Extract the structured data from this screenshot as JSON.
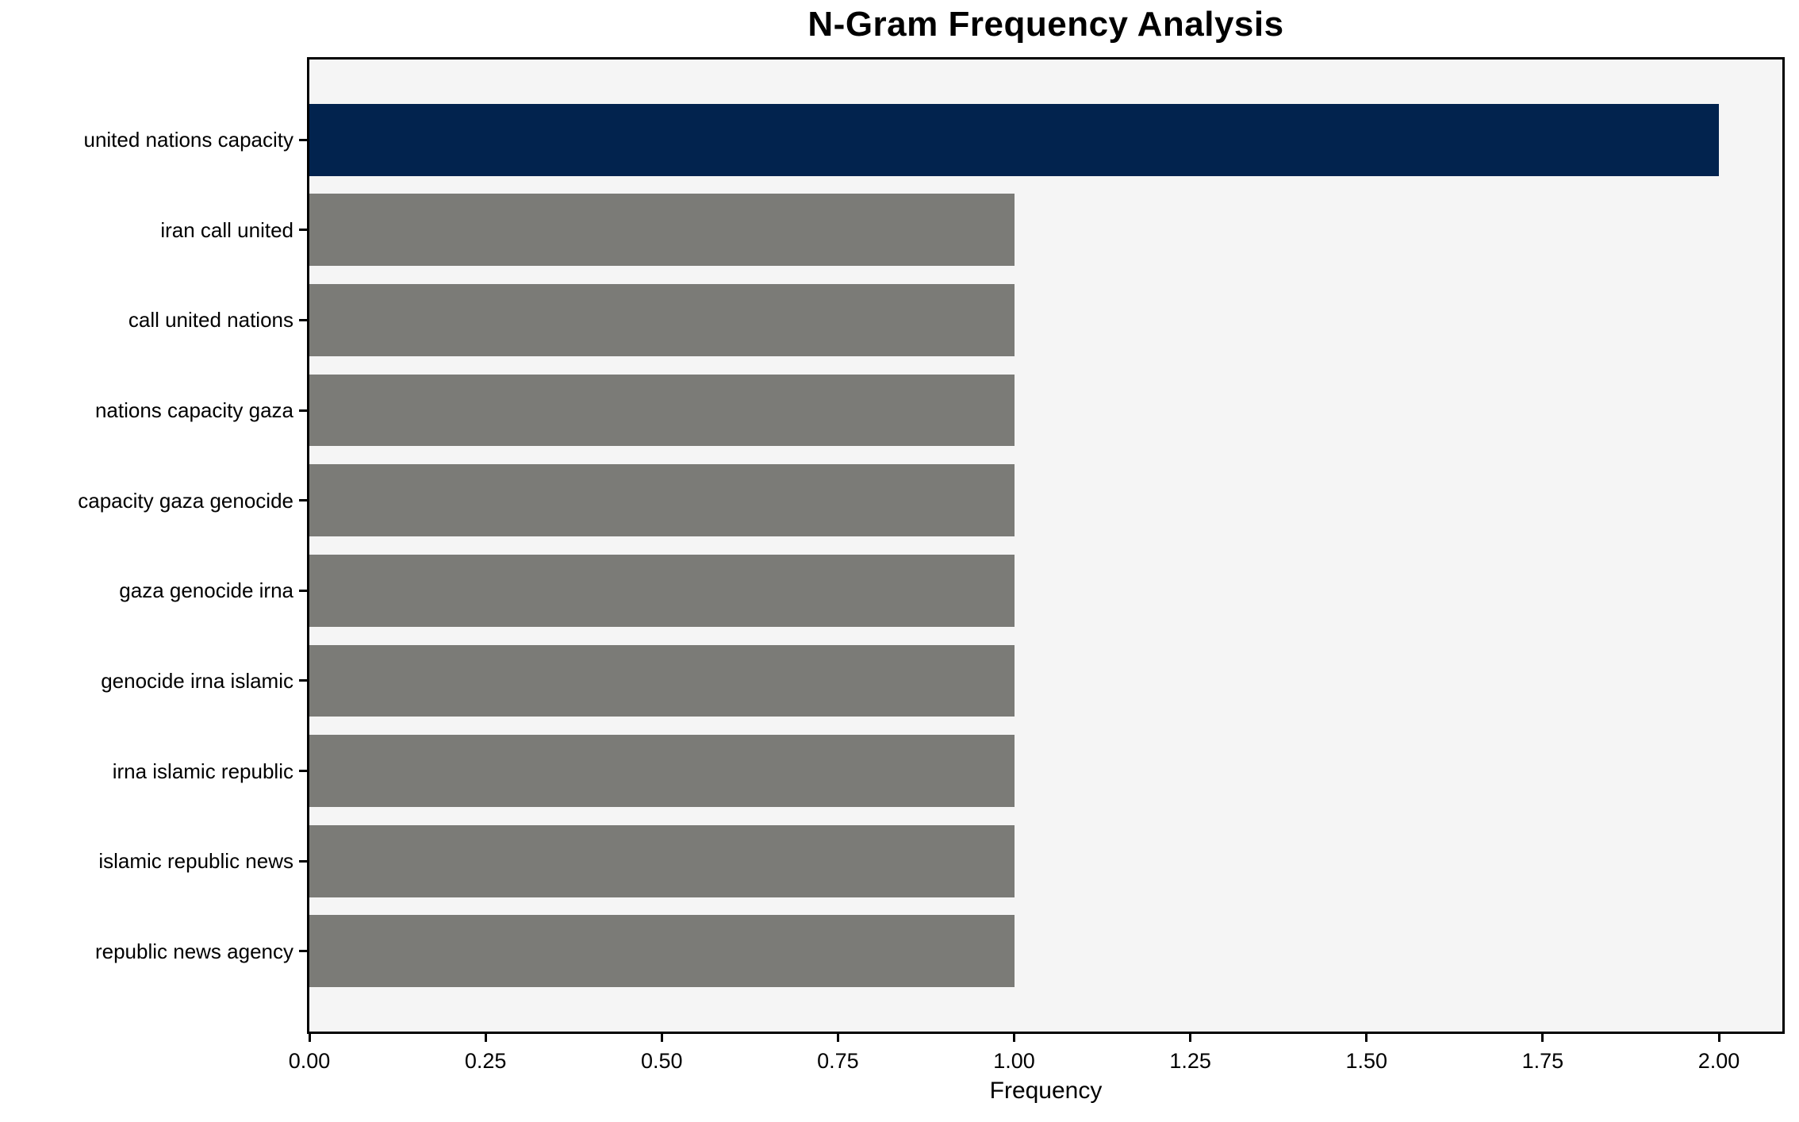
{
  "chart_data": {
    "type": "bar",
    "orientation": "horizontal",
    "title": "N-Gram Frequency Analysis",
    "xlabel": "Frequency",
    "ylabel": "",
    "categories": [
      "united nations capacity",
      "iran call united",
      "call united nations",
      "nations capacity gaza",
      "capacity gaza genocide",
      "gaza genocide irna",
      "genocide irna islamic",
      "irna islamic republic",
      "islamic republic news",
      "republic news agency"
    ],
    "values": [
      2.0,
      1.0,
      1.0,
      1.0,
      1.0,
      1.0,
      1.0,
      1.0,
      1.0,
      1.0
    ],
    "bar_colors": [
      "#02234e",
      "#7b7b77",
      "#7b7b77",
      "#7b7b77",
      "#7b7b77",
      "#7b7b77",
      "#7b7b77",
      "#7b7b77",
      "#7b7b77",
      "#7b7b77"
    ],
    "highlight_color": "#02234e",
    "default_bar_color": "#7b7b77",
    "plot_background": "#f5f5f5",
    "figure_background": "#ffffff",
    "spine_color": "#000000",
    "xlim": [
      0,
      2.09
    ],
    "xtick_values": [
      0.0,
      0.25,
      0.5,
      0.75,
      1.0,
      1.25,
      1.5,
      1.75,
      2.0
    ],
    "xtick_labels": [
      "0.00",
      "0.25",
      "0.50",
      "0.75",
      "1.00",
      "1.25",
      "1.50",
      "1.75",
      "2.00"
    ],
    "grid": false,
    "legend": null
  }
}
